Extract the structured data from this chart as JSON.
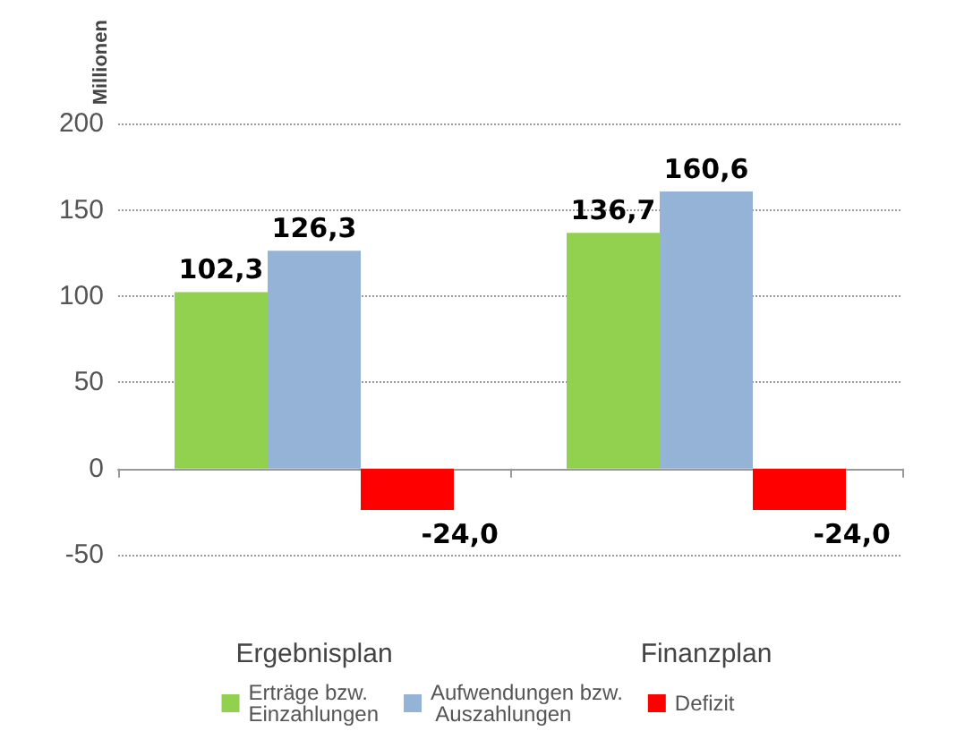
{
  "chart_data": {
    "type": "bar",
    "ylabel": "Millionen",
    "categories": [
      "Ergebnisplan",
      "Finanzplan"
    ],
    "series": [
      {
        "name": "Erträge bzw. Einzahlungen",
        "color": "#92d050",
        "values": [
          102.3,
          136.7
        ],
        "value_labels": [
          "102,3",
          "136,7"
        ]
      },
      {
        "name": "Aufwendungen bzw. Auszahlungen",
        "color": "#95b3d7",
        "values": [
          126.3,
          160.6
        ],
        "value_labels": [
          "126,3",
          "160,6"
        ]
      },
      {
        "name": "Defizit",
        "color": "#ff0000",
        "values": [
          -24.0,
          -24.0
        ],
        "value_labels": [
          "-24,0",
          "-24,0"
        ]
      }
    ],
    "ylim": [
      -50,
      200
    ],
    "yticks": [
      -50,
      0,
      50,
      100,
      150,
      200
    ],
    "grid": "y",
    "legend": "bottom"
  }
}
